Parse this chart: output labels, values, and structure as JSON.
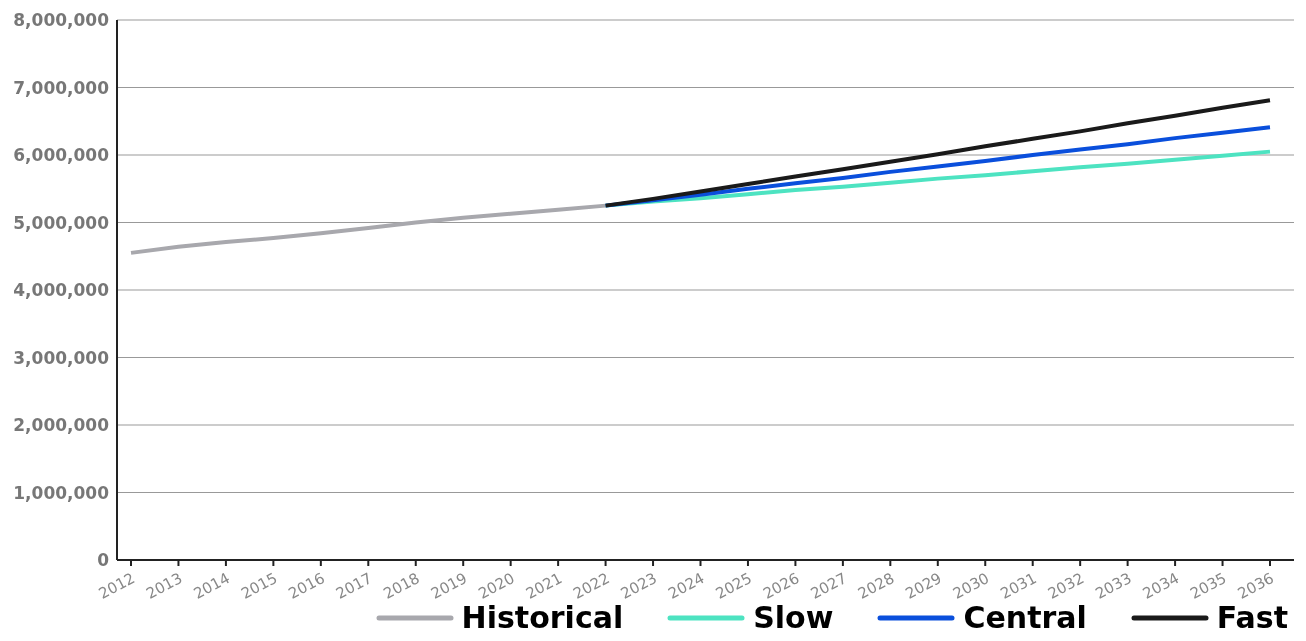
{
  "chart_data": {
    "type": "line",
    "categories": [
      "2012",
      "2013",
      "2014",
      "2015",
      "2016",
      "2017",
      "2018",
      "2019",
      "2020",
      "2021",
      "2022",
      "2023",
      "2024",
      "2025",
      "2026",
      "2027",
      "2028",
      "2029",
      "2030",
      "2031",
      "2032",
      "2033",
      "2034",
      "2035",
      "2036"
    ],
    "ylim": [
      0,
      8000000
    ],
    "yticks": [
      0,
      {
        "value": 1000000,
        "label": "1,000,000"
      },
      {
        "value": 2000000,
        "label": "2,000,000"
      },
      {
        "value": 3000000,
        "label": "3,000,000"
      },
      {
        "value": 4000000,
        "label": "4,000,000"
      },
      {
        "value": 5000000,
        "label": "5,000,000"
      },
      {
        "value": 6000000,
        "label": "6,000,000"
      },
      {
        "value": 7000000,
        "label": "7,000,000"
      },
      {
        "value": 8000000,
        "label": "8,000,000"
      }
    ],
    "grid": "y",
    "legend": "bottom",
    "marker": "none",
    "line_style": "solid",
    "series": [
      {
        "name": "Historical",
        "color": "#a8a8ad",
        "values": [
          4550000,
          4640000,
          4710000,
          4770000,
          4840000,
          4920000,
          5000000,
          5070000,
          5130000,
          5190000,
          5250000,
          null,
          null,
          null,
          null,
          null,
          null,
          null,
          null,
          null,
          null,
          null,
          null,
          null,
          null
        ]
      },
      {
        "name": "Slow",
        "color": "#4de3c1",
        "values": [
          null,
          null,
          null,
          null,
          null,
          null,
          null,
          null,
          null,
          null,
          5250000,
          5310000,
          5360000,
          5420000,
          5480000,
          5530000,
          5590000,
          5650000,
          5700000,
          5760000,
          5820000,
          5870000,
          5930000,
          5990000,
          6050000
        ]
      },
      {
        "name": "Central",
        "color": "#0a4fdc",
        "values": [
          null,
          null,
          null,
          null,
          null,
          null,
          null,
          null,
          null,
          null,
          5250000,
          5330000,
          5410000,
          5500000,
          5580000,
          5660000,
          5750000,
          5830000,
          5910000,
          6000000,
          6080000,
          6160000,
          6250000,
          6330000,
          6410000
        ]
      },
      {
        "name": "Fast",
        "color": "#1a1a1a",
        "values": [
          null,
          null,
          null,
          null,
          null,
          null,
          null,
          null,
          null,
          null,
          5250000,
          5350000,
          5460000,
          5570000,
          5680000,
          5790000,
          5900000,
          6010000,
          6130000,
          6240000,
          6350000,
          6470000,
          6580000,
          6700000,
          6810000
        ]
      }
    ]
  }
}
